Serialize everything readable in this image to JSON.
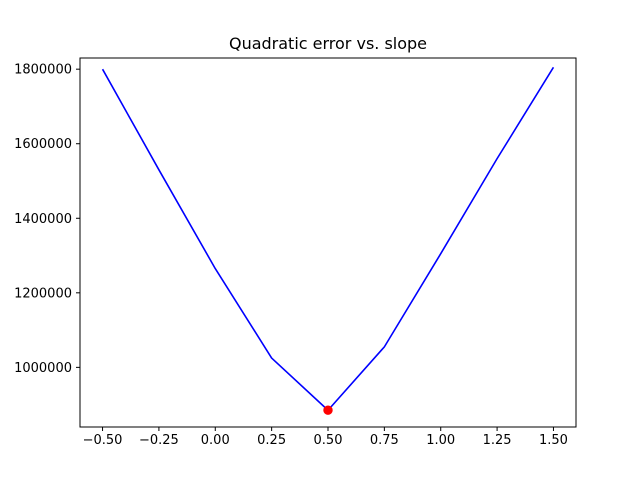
{
  "chart_data": {
    "type": "line",
    "title": "Quadratic error vs. slope",
    "xlabel": "",
    "ylabel": "",
    "xlim": [
      -0.6,
      1.6
    ],
    "ylim": [
      840000,
      1830000
    ],
    "x_ticks": [
      -0.5,
      -0.25,
      0.0,
      0.25,
      0.5,
      0.75,
      1.0,
      1.25,
      1.5
    ],
    "x_tick_labels": [
      "−0.50",
      "−0.25",
      "0.00",
      "0.25",
      "0.50",
      "0.75",
      "1.00",
      "1.25",
      "1.50"
    ],
    "y_ticks": [
      1000000,
      1200000,
      1400000,
      1600000,
      1800000
    ],
    "y_tick_labels": [
      "1000000",
      "1200000",
      "1400000",
      "1600000",
      "1800000"
    ],
    "grid": false,
    "series": [
      {
        "color": "#0000ff",
        "x": [
          -0.5,
          -0.25,
          0.0,
          0.25,
          0.5,
          0.75,
          1.0,
          1.25,
          1.5
        ],
        "y": [
          1800000,
          1530000,
          1265000,
          1025000,
          885000,
          1055000,
          1305000,
          1560000,
          1805000
        ]
      }
    ],
    "points": [
      {
        "color": "#ff0000",
        "x": 0.5,
        "y": 885000
      }
    ]
  }
}
